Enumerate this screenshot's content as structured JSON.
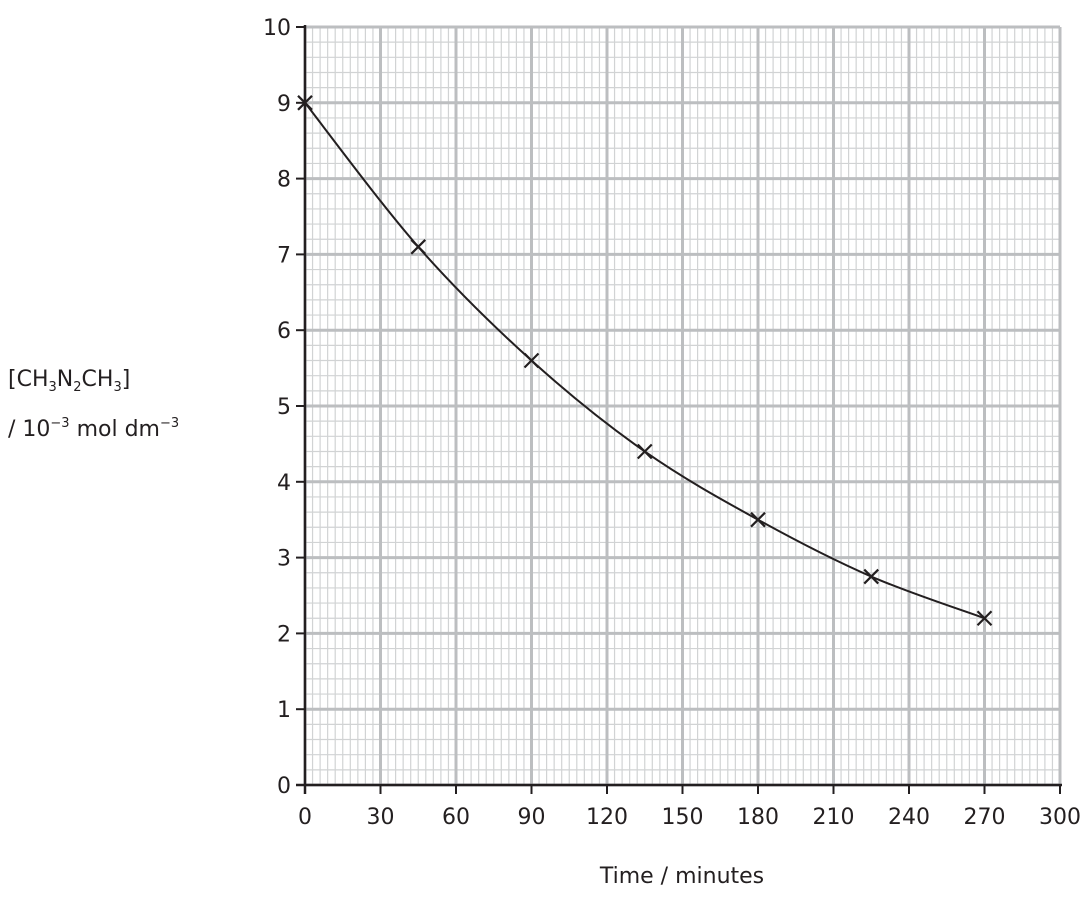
{
  "chart_data": {
    "type": "line",
    "xlabel": "Time / minutes",
    "ylabel": {
      "line1": {
        "a": "[CH",
        "b": "3",
        "c": "N",
        "d": "2",
        "e": "CH",
        "f": "3",
        "g": "]"
      },
      "line2": {
        "a": "/ 10",
        "b": "−3",
        "c": " mol dm",
        "d": "−3"
      }
    },
    "xlim": [
      0,
      300
    ],
    "ylim": [
      0,
      10
    ],
    "x_ticks": [
      0,
      30,
      60,
      90,
      120,
      150,
      180,
      210,
      240,
      270,
      300
    ],
    "y_ticks": [
      0,
      1,
      2,
      3,
      4,
      5,
      6,
      7,
      8,
      9,
      10
    ],
    "grid": true,
    "marker": "x",
    "series": [
      {
        "x": [
          0,
          45,
          90,
          135,
          180,
          225,
          270
        ],
        "y": [
          9.0,
          7.1,
          5.6,
          4.4,
          3.5,
          2.75,
          2.2
        ]
      }
    ],
    "colors": {
      "ink": "#231f20",
      "grid_major": "#bcbec0",
      "grid_minor": "#d1d3d4"
    }
  }
}
